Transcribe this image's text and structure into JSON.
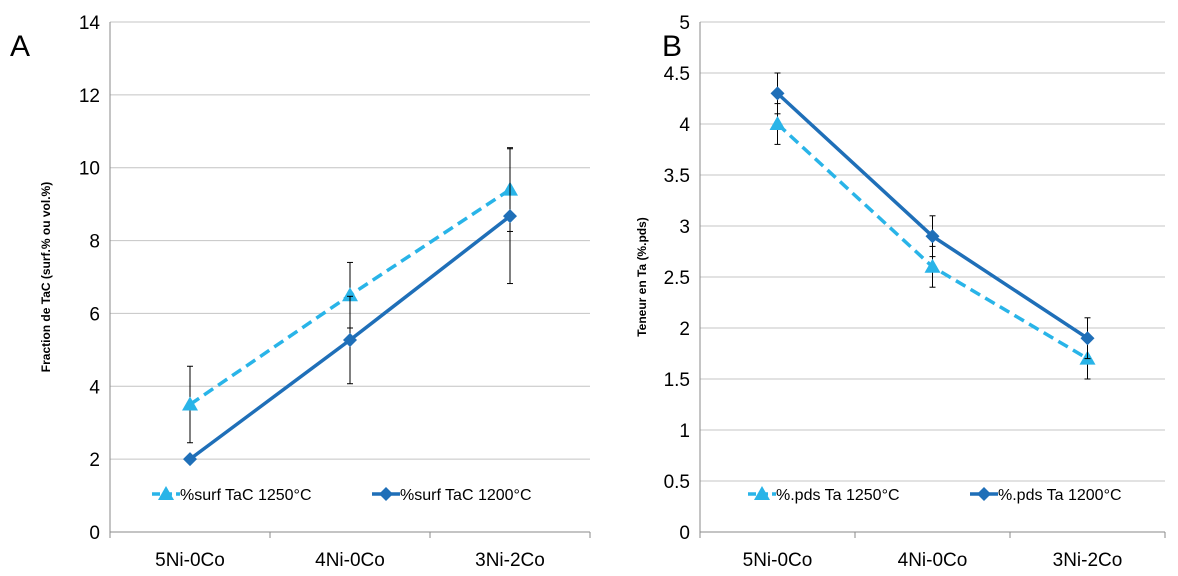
{
  "panels": {
    "a_letter": "A",
    "b_letter": "B"
  },
  "chart_data": [
    {
      "type": "line",
      "panel": "A",
      "categories": [
        "5Ni-0Co",
        "4Ni-0Co",
        "3Ni-2Co"
      ],
      "ylabel": "Fraction de TaC (surf.% ou vol.%)",
      "xlabel": "",
      "ylim": [
        0,
        14
      ],
      "yticks": [
        0,
        2,
        4,
        6,
        8,
        10,
        12,
        14
      ],
      "grid": "horizontal",
      "legend": "bottom",
      "series": [
        {
          "name": "%surf TaC 1250°C",
          "values": [
            3.5,
            6.5,
            9.4
          ],
          "error": [
            1.05,
            0.9,
            1.15
          ],
          "marker": "triangle",
          "dashed": true,
          "color": "#29B4E8"
        },
        {
          "name": "%surf TaC 1200°C",
          "values": [
            2.0,
            5.27,
            8.67
          ],
          "error": [
            0,
            1.2,
            1.85
          ],
          "marker": "diamond",
          "dashed": false,
          "color": "#1F6FB8"
        }
      ]
    },
    {
      "type": "line",
      "panel": "B",
      "categories": [
        "5Ni-0Co",
        "4Ni-0Co",
        "3Ni-2Co"
      ],
      "ylabel": "Teneur en Ta (%.pds)",
      "xlabel": "",
      "ylim": [
        0,
        5
      ],
      "yticks": [
        "0",
        "0.5",
        "1",
        "1.5",
        "2",
        "2.5",
        "3",
        "3.5",
        "4",
        "4.5",
        "5"
      ],
      "grid": "horizontal",
      "legend": "bottom",
      "series": [
        {
          "name": "%.pds Ta 1250°C",
          "values": [
            4.0,
            2.6,
            1.7
          ],
          "error": [
            0.2,
            0.2,
            0.2
          ],
          "marker": "triangle",
          "dashed": true,
          "color": "#29B4E8"
        },
        {
          "name": "%.pds Ta 1200°C",
          "values": [
            4.3,
            2.9,
            1.9
          ],
          "error": [
            0.2,
            0.2,
            0.2
          ],
          "marker": "diamond",
          "dashed": false,
          "color": "#1F6FB8"
        }
      ]
    }
  ]
}
